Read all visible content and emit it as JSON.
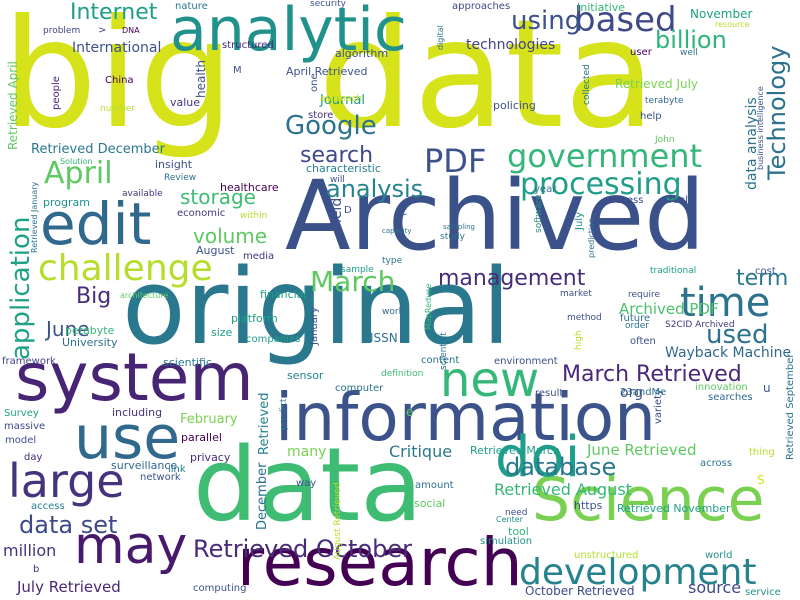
{
  "cloud": {
    "words": [
      {
        "text": "big",
        "color": "#d6e21a"
      },
      {
        "text": "data",
        "color": "#d6e21a"
      },
      {
        "text": "Archived",
        "color": "#3b518a"
      },
      {
        "text": "original",
        "color": "#2a788e"
      },
      {
        "text": "information",
        "color": "#3b528b"
      },
      {
        "text": "data",
        "color": "#3fbc73"
      },
      {
        "text": "research",
        "color": "#440154"
      },
      {
        "text": "system",
        "color": "#482475"
      },
      {
        "text": "Science",
        "color": "#7ad151"
      },
      {
        "text": "analytic",
        "color": "#21918c"
      },
      {
        "text": "edit",
        "color": "#31688e"
      },
      {
        "text": "use",
        "color": "#31688e"
      },
      {
        "text": "may",
        "color": "#481a6c"
      },
      {
        "text": "large",
        "color": "#46337e"
      },
      {
        "text": "doi",
        "color": "#1f9e89"
      },
      {
        "text": "new",
        "color": "#35b779"
      },
      {
        "text": "challenge",
        "color": "#b5de2b"
      },
      {
        "text": "government",
        "color": "#35b779"
      },
      {
        "text": "processing",
        "color": "#1f9e89"
      },
      {
        "text": "development",
        "color": "#26828e"
      },
      {
        "text": "time",
        "color": "#2c728e"
      },
      {
        "text": "based",
        "color": "#3e4989"
      },
      {
        "text": "PDF",
        "color": "#3b528b"
      },
      {
        "text": "April",
        "color": "#5ec962"
      },
      {
        "text": "application",
        "color": "#1fa187"
      },
      {
        "text": "Google",
        "color": "#2c728e"
      },
      {
        "text": "analysis",
        "color": "#26828e"
      },
      {
        "text": "database",
        "color": "#2a788e"
      },
      {
        "text": "data set",
        "color": "#3e4989"
      },
      {
        "text": "management",
        "color": "#472c7a"
      },
      {
        "text": "Retrieved October",
        "color": "#472c7a"
      },
      {
        "text": "March Retrieved",
        "color": "#482878"
      },
      {
        "text": "using",
        "color": "#3b528b"
      },
      {
        "text": "billion",
        "color": "#2fb47c"
      },
      {
        "text": "Technology",
        "color": "#2c728e"
      },
      {
        "text": "Internet",
        "color": "#1f9e89"
      },
      {
        "text": "search",
        "color": "#3e4989"
      },
      {
        "text": "storage",
        "color": "#3fbc73"
      },
      {
        "text": "volume",
        "color": "#5ec962"
      },
      {
        "text": "March",
        "color": "#5ec962"
      },
      {
        "text": "term",
        "color": "#2a788e"
      },
      {
        "text": "used",
        "color": "#2c728e"
      },
      {
        "text": "Big",
        "color": "#472c7a"
      },
      {
        "text": "June",
        "color": "#3b528b"
      },
      {
        "text": "Archived PDF",
        "color": "#4ac16d"
      },
      {
        "text": "Wayback Machine",
        "color": "#31688e"
      },
      {
        "text": "Critique",
        "color": "#2a788e"
      },
      {
        "text": "June Retrieved",
        "color": "#5ec962"
      },
      {
        "text": "Retrieved August",
        "color": "#35b779"
      },
      {
        "text": "million",
        "color": "#46337e"
      },
      {
        "text": "July Retrieved",
        "color": "#482878"
      },
      {
        "text": "October Retrieved",
        "color": "#3e4989"
      },
      {
        "text": "source",
        "color": "#3e4989"
      },
      {
        "text": "data analysis",
        "color": "#2c728e"
      },
      {
        "text": "Retrieved December",
        "color": "#2a788e"
      },
      {
        "text": "International",
        "color": "#3b528b"
      },
      {
        "text": "technologies",
        "color": "#414487"
      },
      {
        "text": "Journal",
        "color": "#1f9e89"
      },
      {
        "text": "April Retrieved",
        "color": "#3b528b"
      },
      {
        "text": "November",
        "color": "#1fa187"
      },
      {
        "text": "healthcare",
        "color": "#440154"
      },
      {
        "text": "February",
        "color": "#7ad151"
      },
      {
        "text": "Retrieved",
        "color": "#26828e"
      },
      {
        "text": "December",
        "color": "#2c728e"
      },
      {
        "text": "Retrieved March",
        "color": "#1f9e89"
      },
      {
        "text": "Retrieved November",
        "color": "#1fa187"
      },
      {
        "text": "platform",
        "color": "#1fa187"
      },
      {
        "text": "petabyte",
        "color": "#35b779"
      },
      {
        "text": "University",
        "color": "#2c728e"
      },
      {
        "text": "ISSN",
        "color": "#2c728e"
      },
      {
        "text": "scientific",
        "color": "#2a788e"
      },
      {
        "text": "including",
        "color": "#46337e"
      },
      {
        "text": "surveillance",
        "color": "#31688e"
      },
      {
        "text": "privacy",
        "color": "#472c7a"
      },
      {
        "text": "parallel",
        "color": "#440154"
      },
      {
        "text": "network",
        "color": "#3b528b"
      },
      {
        "text": "computing",
        "color": "#3b528b"
      },
      {
        "text": "Retrieved September",
        "color": "#2c728e"
      },
      {
        "text": "characteristic",
        "color": "#26828e"
      },
      {
        "text": "value",
        "color": "#46337e"
      },
      {
        "text": "insight",
        "color": "#3b528b"
      },
      {
        "text": "program",
        "color": "#21918c"
      },
      {
        "text": "economic",
        "color": "#46337e"
      },
      {
        "text": "Article",
        "color": "#3b528b"
      },
      {
        "text": "process",
        "color": "#3e4989"
      },
      {
        "text": "August",
        "color": "#3b528b"
      },
      {
        "text": "media",
        "color": "#46337e"
      },
      {
        "text": "financial",
        "color": "#1f9e89"
      },
      {
        "text": "companies",
        "color": "#1f9e89"
      },
      {
        "text": "size",
        "color": "#1f9e89"
      },
      {
        "text": "sensor",
        "color": "#26828e"
      },
      {
        "text": "computer",
        "color": "#2c728e"
      },
      {
        "text": "content",
        "color": "#2c728e"
      },
      {
        "text": "environment",
        "color": "#3b528b"
      },
      {
        "text": "result",
        "color": "#3b528b"
      },
      {
        "text": "variety",
        "color": "#3e4989"
      },
      {
        "text": "innovation",
        "color": "#5ec962"
      },
      {
        "text": "searches",
        "color": "#31688e"
      },
      {
        "text": "thing",
        "color": "#b5de2b"
      },
      {
        "text": "across",
        "color": "#2c728e"
      },
      {
        "text": "world",
        "color": "#21918c"
      },
      {
        "text": "service",
        "color": "#21918c"
      },
      {
        "text": "simulation",
        "color": "#21918c"
      },
      {
        "text": "tool",
        "color": "#35b779"
      },
      {
        "text": "https",
        "color": "#3b528b"
      },
      {
        "text": "amount",
        "color": "#2c728e"
      },
      {
        "text": "social",
        "color": "#5ec962"
      },
      {
        "text": "access",
        "color": "#26828e"
      },
      {
        "text": "day",
        "color": "#482878"
      },
      {
        "text": "link",
        "color": "#2a788e"
      },
      {
        "text": "way",
        "color": "#3b528b"
      },
      {
        "text": "model",
        "color": "#3b528b"
      },
      {
        "text": "massive",
        "color": "#3e4989"
      },
      {
        "text": "Survey",
        "color": "#1fa187"
      },
      {
        "text": "framework",
        "color": "#414487"
      },
      {
        "text": "many",
        "color": "#7ad151"
      },
      {
        "text": "sample",
        "color": "#1f9e89"
      },
      {
        "text": "type",
        "color": "#2c728e"
      },
      {
        "text": "work",
        "color": "#31688e"
      },
      {
        "text": "definition",
        "color": "#3fbc73"
      },
      {
        "text": "market",
        "color": "#3b528b"
      },
      {
        "text": "require",
        "color": "#3b528b"
      },
      {
        "text": "order",
        "color": "#2c728e"
      },
      {
        "text": "often",
        "color": "#3b528b"
      },
      {
        "text": "future",
        "color": "#2c728e"
      },
      {
        "text": "cost",
        "color": "#3b528b"
      },
      {
        "text": "traditional",
        "color": "#1f9e89"
      },
      {
        "text": "S2CID Archived",
        "color": "#46337e"
      },
      {
        "text": "23andMe",
        "color": "#2c728e"
      },
      {
        "text": "method",
        "color": "#3b528b"
      },
      {
        "text": "China",
        "color": "#440154"
      },
      {
        "text": "people",
        "color": "#482878"
      },
      {
        "text": "nature",
        "color": "#2a788e"
      },
      {
        "text": "DNA",
        "color": "#440154"
      },
      {
        "text": "security",
        "color": "#3b528b"
      },
      {
        "text": "approaches",
        "color": "#3e4989"
      },
      {
        "text": "algorithm",
        "color": "#3b528b"
      },
      {
        "text": "structured",
        "color": "#482878"
      },
      {
        "text": "store",
        "color": "#46337e"
      },
      {
        "text": "policing",
        "color": "#3b528b"
      },
      {
        "text": "collected",
        "color": "#2c728e"
      },
      {
        "text": "terabyte",
        "color": "#31688e"
      },
      {
        "text": "help",
        "color": "#3b528b"
      },
      {
        "text": "user",
        "color": "#440154"
      },
      {
        "text": "well",
        "color": "#2c728e"
      },
      {
        "text": "resource",
        "color": "#b5de2b"
      },
      {
        "text": "business intelligence",
        "color": "#3b528b"
      },
      {
        "text": "Initiative",
        "color": "#35b779"
      },
      {
        "text": "digital",
        "color": "#2c728e"
      },
      {
        "text": "year",
        "color": "#2c728e"
      },
      {
        "text": "John",
        "color": "#5ec962"
      },
      {
        "text": "Review",
        "color": "#2c728e"
      },
      {
        "text": "available",
        "color": "#46337e"
      },
      {
        "text": "Solution",
        "color": "#35b779"
      },
      {
        "text": "number",
        "color": "#b5de2b"
      },
      {
        "text": "problem",
        "color": "#414487"
      },
      {
        "text": "one",
        "color": "#3b528b"
      },
      {
        "text": "will",
        "color": "#3b528b"
      },
      {
        "text": "within",
        "color": "#b5de2b"
      },
      {
        "text": "predict",
        "color": "#2c728e"
      },
      {
        "text": "prediction",
        "color": "#2c728e"
      },
      {
        "text": "study",
        "color": "#2c728e"
      },
      {
        "text": "scientist",
        "color": "#2c728e"
      },
      {
        "text": "software",
        "color": "#21918c"
      },
      {
        "text": "architecture",
        "color": "#5ec962"
      },
      {
        "text": "need",
        "color": "#3b528b"
      },
      {
        "text": "Center",
        "color": "#21918c"
      },
      {
        "text": "unstructured",
        "color": "#b5de2b"
      },
      {
        "text": "Retrieved January",
        "color": "#2c728e"
      },
      {
        "text": "Retrieved April",
        "color": "#5ec962"
      },
      {
        "text": "January",
        "color": "#3b528b"
      },
      {
        "text": "health",
        "color": "#3b528b"
      },
      {
        "text": "Retrieved July",
        "color": "#7ad151"
      },
      {
        "text": "field",
        "color": "#3b528b"
      },
      {
        "text": "approach",
        "color": "#d6e21a"
      },
      {
        "text": "high",
        "color": "#b5de2b"
      },
      {
        "text": "August Retrieved",
        "color": "#b5de2b"
      },
      {
        "text": "MapReduce",
        "color": "#35b779"
      },
      {
        "text": "July",
        "color": "#21918c"
      },
      {
        "text": "capacity",
        "color": "#2c728e"
      },
      {
        "text": "sampling",
        "color": "#2c728e"
      },
      {
        "text": "org",
        "color": "#3b528b"
      },
      {
        "text": "b",
        "color": "#46337e"
      },
      {
        "text": "u",
        "color": "#3b528b"
      },
      {
        "text": "e",
        "color": "#5ec962"
      },
      {
        "text": "S",
        "color": "#d6e21a"
      },
      {
        "text": "C",
        "color": "#3b528b"
      },
      {
        "text": "D",
        "color": "#3b528b"
      },
      {
        "text": "M",
        "color": "#3b528b"
      },
      {
        "text": ">",
        "color": "#414487"
      }
    ]
  }
}
